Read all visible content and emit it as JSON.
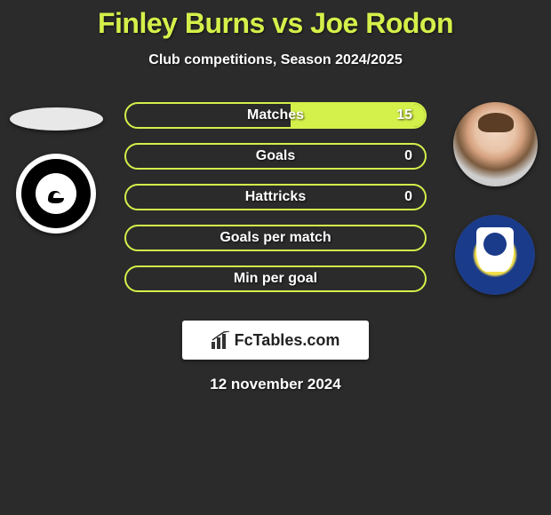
{
  "title": "Finley Burns vs Joe Rodon",
  "subtitle": "Club competitions, Season 2024/2025",
  "date": "12 november 2024",
  "logo": {
    "text": "FcTables.com"
  },
  "colors": {
    "accent": "#d4f04a",
    "background": "#2b2b2b",
    "text": "#ffffff",
    "logo_bg": "#ffffff",
    "logo_text": "#222222",
    "club2_blue": "#1a3a8a",
    "club2_yellow": "#f5e04a"
  },
  "typography": {
    "title_fontsize": 32,
    "title_weight": 900,
    "subtitle_fontsize": 16,
    "bar_label_fontsize": 16,
    "date_fontsize": 17
  },
  "bars": [
    {
      "label": "Matches",
      "left_value": null,
      "right_value": 15,
      "left_fill_pct": 0,
      "right_fill_pct": 45
    },
    {
      "label": "Goals",
      "left_value": null,
      "right_value": 0,
      "left_fill_pct": 0,
      "right_fill_pct": 0
    },
    {
      "label": "Hattricks",
      "left_value": null,
      "right_value": 0,
      "left_fill_pct": 0,
      "right_fill_pct": 0
    },
    {
      "label": "Goals per match",
      "left_value": null,
      "right_value": null,
      "left_fill_pct": 0,
      "right_fill_pct": 0
    },
    {
      "label": "Min per goal",
      "left_value": null,
      "right_value": null,
      "left_fill_pct": 0,
      "right_fill_pct": 0
    }
  ],
  "bar_style": {
    "height": 30,
    "border_width": 2,
    "border_radius": 16,
    "gap": 16,
    "border_color": "#d4f04a",
    "fill_color": "#d4f04a"
  }
}
